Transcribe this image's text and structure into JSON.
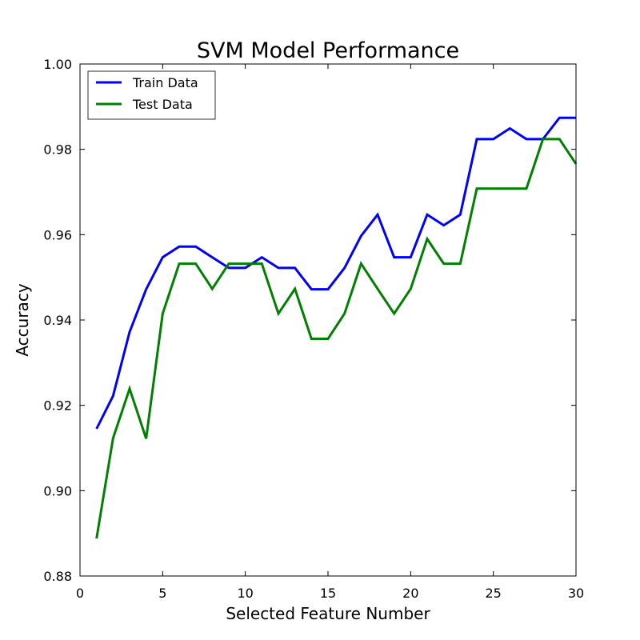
{
  "chart_data": {
    "type": "line",
    "title": "SVM Model Performance",
    "xlabel": "Selected Feature Number",
    "ylabel": "Accuracy",
    "xlim": [
      0,
      30
    ],
    "ylim": [
      0.88,
      1.0
    ],
    "xticks": [
      0,
      5,
      10,
      15,
      20,
      25,
      30
    ],
    "xtick_labels": [
      "0",
      "5",
      "10",
      "15",
      "20",
      "25",
      "30"
    ],
    "yticks": [
      0.88,
      0.9,
      0.92,
      0.94,
      0.96,
      0.98,
      1.0
    ],
    "ytick_labels": [
      "0.88",
      "0.90",
      "0.92",
      "0.94",
      "0.96",
      "0.98",
      "1.00"
    ],
    "grid": false,
    "legend": "top-left",
    "x": [
      1,
      2,
      3,
      4,
      5,
      6,
      7,
      8,
      9,
      10,
      11,
      12,
      13,
      14,
      15,
      16,
      17,
      18,
      19,
      20,
      21,
      22,
      23,
      24,
      25,
      26,
      27,
      28,
      29,
      30
    ],
    "series": [
      {
        "name": "Train Data",
        "color": "#0000ff",
        "values": [
          0.9145,
          0.9222,
          0.9372,
          0.9472,
          0.9547,
          0.9572,
          0.9572,
          0.9547,
          0.9522,
          0.9522,
          0.9547,
          0.9522,
          0.9522,
          0.9472,
          0.9472,
          0.9522,
          0.9597,
          0.9647,
          0.9547,
          0.9547,
          0.9647,
          0.9622,
          0.9647,
          0.9824,
          0.9824,
          0.9849,
          0.9824,
          0.9824,
          0.9874,
          0.9874
        ]
      },
      {
        "name": "Test Data",
        "color": "#008000",
        "values": [
          0.8888,
          0.9123,
          0.9239,
          0.9122,
          0.9415,
          0.9532,
          0.9532,
          0.9473,
          0.9532,
          0.9532,
          0.9532,
          0.9415,
          0.9473,
          0.9356,
          0.9356,
          0.9415,
          0.9532,
          0.9473,
          0.9415,
          0.9473,
          0.959,
          0.9532,
          0.9532,
          0.9708,
          0.9708,
          0.9708,
          0.9708,
          0.9824,
          0.9824,
          0.9766
        ]
      }
    ]
  }
}
